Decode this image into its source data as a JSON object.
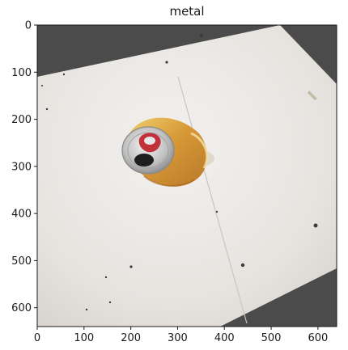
{
  "title": "metal",
  "x_ticks": [
    "0",
    "100",
    "200",
    "300",
    "400",
    "500",
    "600"
  ],
  "y_ticks": [
    "0",
    "100",
    "200",
    "300",
    "400",
    "500",
    "600"
  ],
  "image": {
    "subject": "crushed aluminium beverage can on a white surface",
    "can_colors": {
      "body": "#d9a441",
      "top": "#c8c8c8",
      "tab": "#c2303a"
    },
    "background": "#4b4b4b",
    "surface": "#e9e6e3"
  }
}
